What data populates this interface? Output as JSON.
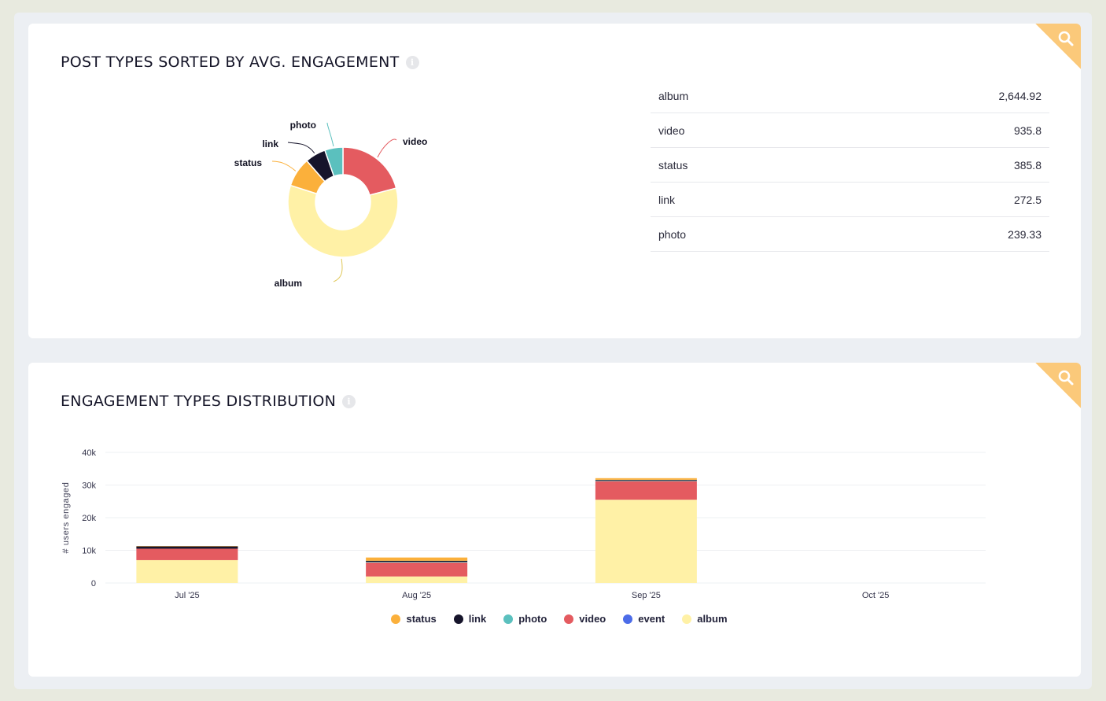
{
  "colors": {
    "status": "#fbb03b",
    "link": "#16142b",
    "photo": "#5bc0be",
    "video": "#e45b60",
    "event": "#4c6ce8",
    "album": "#fff1a6"
  },
  "card1": {
    "title": "POST TYPES SORTED BY AVG. ENGAGEMENT",
    "search_icon": "search-icon",
    "info_icon": "i",
    "rows": [
      {
        "label": "album",
        "value": "2,644.92"
      },
      {
        "label": "video",
        "value": "935.8"
      },
      {
        "label": "status",
        "value": "385.8"
      },
      {
        "label": "link",
        "value": "272.5"
      },
      {
        "label": "photo",
        "value": "239.33"
      }
    ]
  },
  "card2": {
    "title": "ENGAGEMENT TYPES DISTRIBUTION",
    "search_icon": "search-icon",
    "info_icon": "i",
    "legend": [
      "status",
      "link",
      "photo",
      "video",
      "event",
      "album"
    ]
  },
  "chart_data": [
    {
      "type": "pie",
      "donut": true,
      "categories": [
        "album",
        "video",
        "status",
        "link",
        "photo"
      ],
      "values": [
        2644.92,
        935.8,
        385.8,
        272.5,
        239.33
      ]
    },
    {
      "type": "bar",
      "stacked": true,
      "categories": [
        "Jul '25",
        "Aug '25",
        "Sep '25",
        "Oct '25"
      ],
      "ylabel": "# users engaged",
      "ylim": [
        0,
        40000
      ],
      "yticks": [
        0,
        10000,
        20000,
        30000,
        40000
      ],
      "ytick_labels": [
        "0",
        "10k",
        "20k",
        "30k",
        "40k"
      ],
      "grid": true,
      "legend_position": "bottom",
      "series": [
        {
          "name": "album",
          "values": [
            7000,
            2000,
            25500,
            0
          ]
        },
        {
          "name": "video",
          "values": [
            3500,
            4300,
            5700,
            0
          ]
        },
        {
          "name": "event",
          "values": [
            0,
            0,
            0,
            0
          ]
        },
        {
          "name": "photo",
          "values": [
            0,
            200,
            200,
            0
          ]
        },
        {
          "name": "link",
          "values": [
            700,
            300,
            200,
            0
          ]
        },
        {
          "name": "status",
          "values": [
            100,
            1000,
            500,
            0
          ]
        }
      ]
    }
  ]
}
